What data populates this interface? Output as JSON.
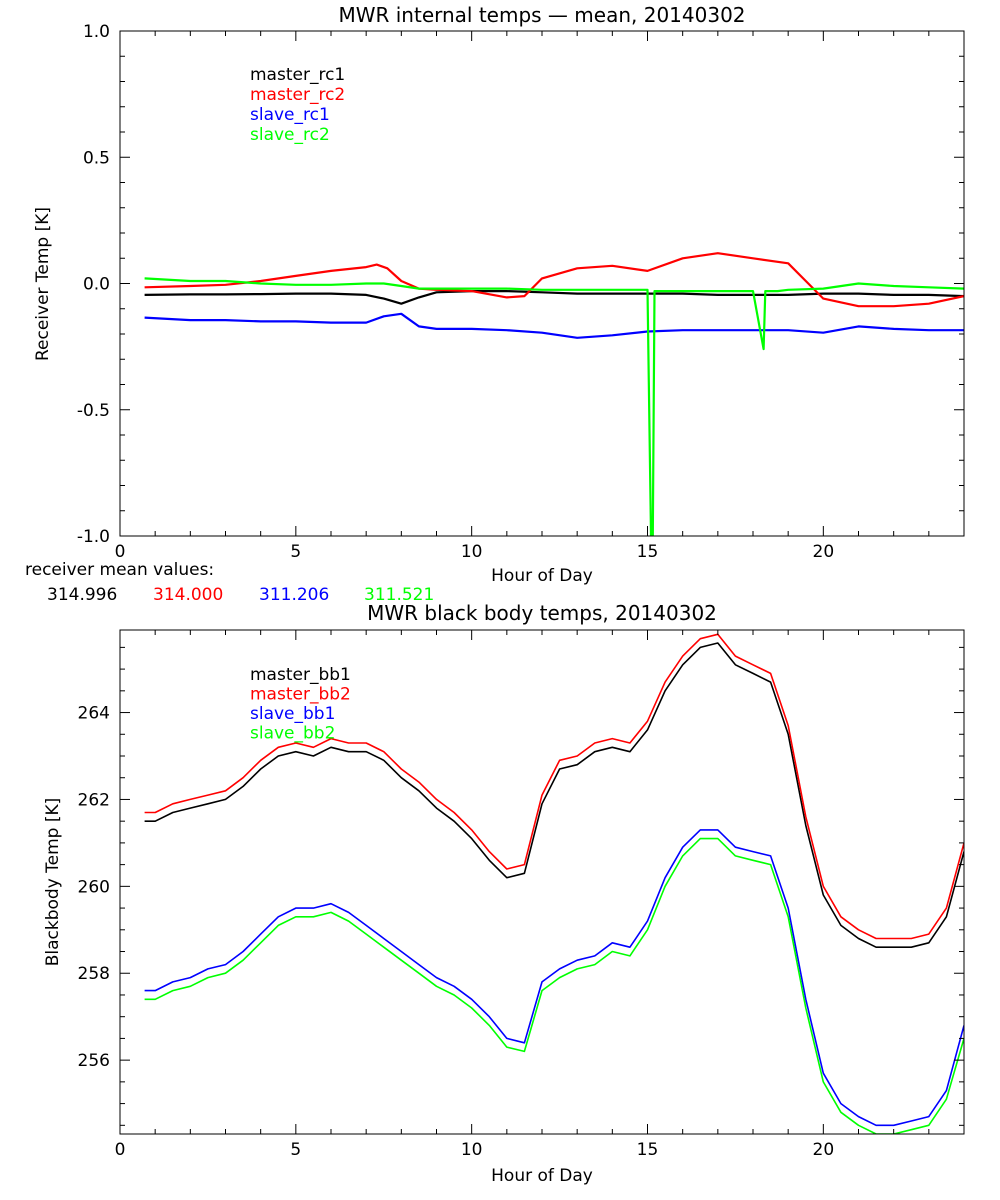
{
  "chart_data": [
    {
      "type": "line",
      "title": "MWR internal temps — mean, 20140302",
      "xlabel": "Hour of Day",
      "ylabel": "Receiver Temp [K]",
      "xlim": [
        0,
        24
      ],
      "ylim": [
        -1.0,
        1.0
      ],
      "xticks": [
        0,
        5,
        10,
        15,
        20
      ],
      "yticks": [
        1.0,
        0.5,
        0.0,
        -0.5,
        -1.0
      ],
      "ytick_labels": [
        "1.0",
        "0.5",
        "0.0",
        "-0.5",
        "-1.0"
      ],
      "legend_placement": "top-left",
      "series": [
        {
          "name": "master_rc1",
          "color": "#000000",
          "x": [
            0.7,
            2,
            3,
            4,
            5,
            6,
            7,
            7.5,
            8,
            8.5,
            9,
            10,
            11,
            12,
            13,
            14,
            15,
            16,
            17,
            18,
            19,
            20,
            21,
            22,
            23,
            24
          ],
          "y": [
            -0.045,
            -0.043,
            -0.043,
            -0.042,
            -0.04,
            -0.04,
            -0.045,
            -0.06,
            -0.08,
            -0.055,
            -0.035,
            -0.03,
            -0.03,
            -0.035,
            -0.04,
            -0.04,
            -0.04,
            -0.04,
            -0.045,
            -0.045,
            -0.045,
            -0.04,
            -0.04,
            -0.045,
            -0.045,
            -0.05
          ]
        },
        {
          "name": "master_rc2",
          "color": "#ff0000",
          "x": [
            0.7,
            2,
            3,
            4,
            5,
            6,
            7,
            7.3,
            7.6,
            8,
            8.5,
            9,
            10,
            11,
            11.5,
            12,
            13,
            14,
            15,
            16,
            17,
            18,
            19,
            19.5,
            20,
            21,
            22,
            23,
            24
          ],
          "y": [
            -0.015,
            -0.01,
            -0.005,
            0.01,
            0.03,
            0.05,
            0.065,
            0.075,
            0.06,
            0.01,
            -0.02,
            -0.025,
            -0.03,
            -0.055,
            -0.05,
            0.02,
            0.06,
            0.07,
            0.05,
            0.1,
            0.12,
            0.1,
            0.08,
            0.01,
            -0.06,
            -0.09,
            -0.09,
            -0.08,
            -0.05
          ]
        },
        {
          "name": "slave_rc1",
          "color": "#0000ff",
          "x": [
            0.7,
            2,
            3,
            4,
            5,
            6,
            7,
            7.5,
            8,
            8.5,
            9,
            10,
            11,
            12,
            13,
            14,
            15,
            16,
            17,
            18,
            19,
            20,
            21,
            22,
            23,
            24
          ],
          "y": [
            -0.135,
            -0.145,
            -0.145,
            -0.15,
            -0.15,
            -0.155,
            -0.155,
            -0.13,
            -0.12,
            -0.17,
            -0.18,
            -0.18,
            -0.185,
            -0.195,
            -0.215,
            -0.205,
            -0.19,
            -0.185,
            -0.185,
            -0.185,
            -0.185,
            -0.195,
            -0.17,
            -0.18,
            -0.185,
            -0.185
          ]
        },
        {
          "name": "slave_rc2",
          "color": "#00ff00",
          "x": [
            0.7,
            2,
            3,
            4,
            5,
            6,
            7,
            7.5,
            8,
            8.5,
            9,
            10,
            11,
            12,
            13,
            14,
            15,
            15.1,
            15.15,
            15.2,
            16,
            17,
            18,
            18.3,
            18.35,
            18.4,
            18.7,
            19,
            20,
            21,
            22,
            23,
            24
          ],
          "y": [
            0.02,
            0.01,
            0.01,
            0.0,
            -0.005,
            -0.005,
            0.0,
            0.0,
            -0.01,
            -0.02,
            -0.02,
            -0.02,
            -0.02,
            -0.025,
            -0.025,
            -0.025,
            -0.025,
            -1.0,
            -1.0,
            -0.03,
            -0.03,
            -0.03,
            -0.03,
            -0.26,
            -0.03,
            -0.03,
            -0.03,
            -0.025,
            -0.02,
            0.0,
            -0.01,
            -0.015,
            -0.02
          ]
        }
      ],
      "annotation": {
        "label": "receiver mean values:",
        "values": [
          "314.996",
          "314.000",
          "311.206",
          "311.521"
        ],
        "colors": [
          "#000000",
          "#ff0000",
          "#0000ff",
          "#00ff00"
        ]
      }
    },
    {
      "type": "line",
      "title": "MWR black body temps, 20140302",
      "xlabel": "Hour of Day",
      "ylabel": "Blackbody Temp [K]",
      "xlim": [
        0,
        24
      ],
      "ylim": [
        254.3,
        265.9
      ],
      "xticks": [
        0,
        5,
        10,
        15,
        20
      ],
      "yticks": [
        256,
        258,
        260,
        262,
        264
      ],
      "ytick_labels": [
        "256",
        "258",
        "260",
        "262",
        "264"
      ],
      "legend_placement": "top-left",
      "series": [
        {
          "name": "master_bb1",
          "color": "#000000",
          "x": [
            0.7,
            1,
            1.5,
            2,
            2.5,
            3,
            3.5,
            4,
            4.5,
            5,
            5.5,
            6,
            6.5,
            7,
            7.5,
            8,
            8.5,
            9,
            9.5,
            10,
            10.5,
            11,
            11.5,
            12,
            12.5,
            13,
            13.5,
            14,
            14.5,
            15,
            15.5,
            16,
            16.5,
            17,
            17.5,
            18,
            18.5,
            19,
            19.5,
            20,
            20.5,
            21,
            21.5,
            22,
            22.5,
            23,
            23.5,
            24
          ],
          "y": [
            261.5,
            261.5,
            261.7,
            261.8,
            261.9,
            262.0,
            262.3,
            262.7,
            263.0,
            263.1,
            263.0,
            263.2,
            263.1,
            263.1,
            262.9,
            262.5,
            262.2,
            261.8,
            261.5,
            261.1,
            260.6,
            260.2,
            260.3,
            261.9,
            262.7,
            262.8,
            263.1,
            263.2,
            263.1,
            263.6,
            264.5,
            265.1,
            265.5,
            265.6,
            265.1,
            264.9,
            264.7,
            263.5,
            261.4,
            259.8,
            259.1,
            258.8,
            258.6,
            258.6,
            258.6,
            258.7,
            259.3,
            260.8
          ]
        },
        {
          "name": "master_bb2",
          "color": "#ff0000",
          "x": [
            0.7,
            1,
            1.5,
            2,
            2.5,
            3,
            3.5,
            4,
            4.5,
            5,
            5.5,
            6,
            6.5,
            7,
            7.5,
            8,
            8.5,
            9,
            9.5,
            10,
            10.5,
            11,
            11.5,
            12,
            12.5,
            13,
            13.5,
            14,
            14.5,
            15,
            15.5,
            16,
            16.5,
            17,
            17.5,
            18,
            18.5,
            19,
            19.5,
            20,
            20.5,
            21,
            21.5,
            22,
            22.5,
            23,
            23.5,
            24
          ],
          "y": [
            261.7,
            261.7,
            261.9,
            262.0,
            262.1,
            262.2,
            262.5,
            262.9,
            263.2,
            263.3,
            263.2,
            263.4,
            263.3,
            263.3,
            263.1,
            262.7,
            262.4,
            262.0,
            261.7,
            261.3,
            260.8,
            260.4,
            260.5,
            262.1,
            262.9,
            263.0,
            263.3,
            263.4,
            263.3,
            263.8,
            264.7,
            265.3,
            265.7,
            265.8,
            265.3,
            265.1,
            264.9,
            263.7,
            261.6,
            260.0,
            259.3,
            259.0,
            258.8,
            258.8,
            258.8,
            258.9,
            259.5,
            261.0
          ]
        },
        {
          "name": "slave_bb1",
          "color": "#0000ff",
          "x": [
            0.7,
            1,
            1.5,
            2,
            2.5,
            3,
            3.5,
            4,
            4.5,
            5,
            5.5,
            6,
            6.5,
            7,
            7.5,
            8,
            8.5,
            9,
            9.5,
            10,
            10.5,
            11,
            11.5,
            12,
            12.5,
            13,
            13.5,
            14,
            14.5,
            15,
            15.5,
            16,
            16.5,
            17,
            17.5,
            18,
            18.5,
            19,
            19.5,
            20,
            20.5,
            21,
            21.5,
            22,
            22.5,
            23,
            23.5,
            24
          ],
          "y": [
            257.6,
            257.6,
            257.8,
            257.9,
            258.1,
            258.2,
            258.5,
            258.9,
            259.3,
            259.5,
            259.5,
            259.6,
            259.4,
            259.1,
            258.8,
            258.5,
            258.2,
            257.9,
            257.7,
            257.4,
            257.0,
            256.5,
            256.4,
            257.8,
            258.1,
            258.3,
            258.4,
            258.7,
            258.6,
            259.2,
            260.2,
            260.9,
            261.3,
            261.3,
            260.9,
            260.8,
            260.7,
            259.5,
            257.4,
            255.7,
            255.0,
            254.7,
            254.5,
            254.5,
            254.6,
            254.7,
            255.3,
            256.8
          ]
        },
        {
          "name": "slave_bb2",
          "color": "#00ff00",
          "x": [
            0.7,
            1,
            1.5,
            2,
            2.5,
            3,
            3.5,
            4,
            4.5,
            5,
            5.5,
            6,
            6.5,
            7,
            7.5,
            8,
            8.5,
            9,
            9.5,
            10,
            10.5,
            11,
            11.5,
            12,
            12.5,
            13,
            13.5,
            14,
            14.5,
            15,
            15.5,
            16,
            16.5,
            17,
            17.5,
            18,
            18.5,
            19,
            19.5,
            20,
            20.5,
            21,
            21.5,
            22,
            22.5,
            23,
            23.5,
            24
          ],
          "y": [
            257.4,
            257.4,
            257.6,
            257.7,
            257.9,
            258.0,
            258.3,
            258.7,
            259.1,
            259.3,
            259.3,
            259.4,
            259.2,
            258.9,
            258.6,
            258.3,
            258.0,
            257.7,
            257.5,
            257.2,
            256.8,
            256.3,
            256.2,
            257.6,
            257.9,
            258.1,
            258.2,
            258.5,
            258.4,
            259.0,
            260.0,
            260.7,
            261.1,
            261.1,
            260.7,
            260.6,
            260.5,
            259.3,
            257.2,
            255.5,
            254.8,
            254.5,
            254.3,
            254.3,
            254.4,
            254.5,
            255.1,
            256.5
          ]
        }
      ]
    }
  ]
}
